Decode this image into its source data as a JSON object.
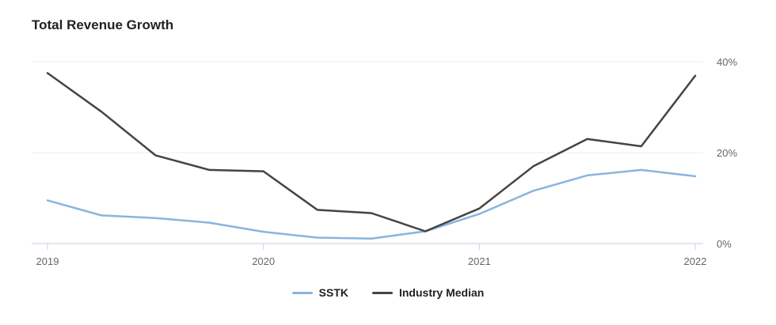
{
  "chart_data": {
    "type": "line",
    "title": "Total Revenue Growth",
    "x": [
      2019.0,
      2019.25,
      2019.5,
      2019.75,
      2020.0,
      2020.25,
      2020.5,
      2020.75,
      2021.0,
      2021.25,
      2021.5,
      2021.75,
      2022.0
    ],
    "xticks": [
      "2019",
      "2020",
      "2021",
      "2022"
    ],
    "yticks": [
      "0%",
      "20%",
      "40%"
    ],
    "ylim": [
      0,
      40
    ],
    "grid": true,
    "legend_position": "bottom",
    "series": [
      {
        "name": "SSTK",
        "color": "#8ab4e0",
        "values": [
          9.5,
          6.2,
          5.6,
          4.6,
          2.6,
          1.3,
          1.1,
          2.7,
          6.5,
          11.6,
          15.0,
          16.2,
          14.8
        ]
      },
      {
        "name": "Industry Median",
        "color": "#444444",
        "values": [
          37.5,
          29.0,
          19.4,
          16.2,
          15.9,
          7.4,
          6.7,
          2.7,
          7.7,
          17.0,
          23.0,
          21.4,
          36.9
        ]
      }
    ]
  }
}
